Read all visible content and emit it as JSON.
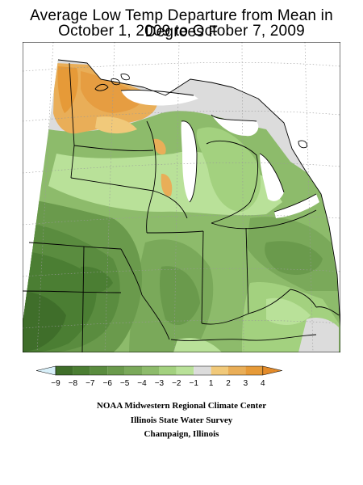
{
  "title_line1": "Average Low Temp Departure from Mean in Degrees F",
  "title_line2": "October 1, 2009 to October 7, 2009",
  "legend": {
    "ticks": [
      "−9",
      "−8",
      "−7",
      "−6",
      "−5",
      "−4",
      "−3",
      "−2",
      "−1",
      "1",
      "2",
      "3",
      "4"
    ],
    "colors": {
      "below_min": "#d8f0fa",
      "b98": "#3f6e2a",
      "b87": "#4b7e33",
      "b76": "#5a8c3f",
      "b65": "#6a9a4c",
      "b54": "#7aa95a",
      "b43": "#8dbb6b",
      "b32": "#a3d17f",
      "b21": "#b9e199",
      "b11": "#dcdcdc",
      "b12": "#f1c97a",
      "b23": "#e9ae58",
      "b34": "#e69a38",
      "above_max": "#e38b2a"
    }
  },
  "credits": [
    "NOAA Midwestern Regional Climate Center",
    "Illinois State Water Survey",
    "Champaign, Illinois"
  ]
}
